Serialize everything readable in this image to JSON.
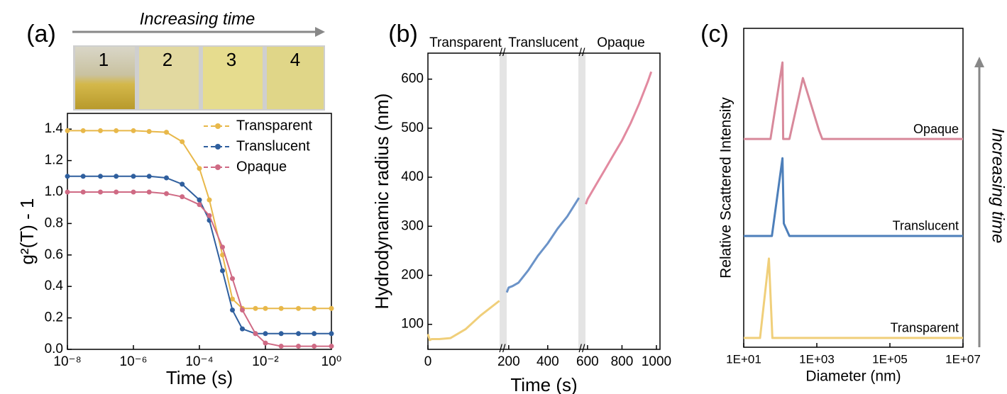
{
  "chart_data": [
    {
      "type": "line",
      "panel_label": "(a)",
      "annotation": "Increasing time",
      "vial_labels": [
        "1",
        "2",
        "3",
        "4"
      ],
      "x_label": "Time (s)",
      "y_label": "g²(T) - 1",
      "x_scale": "log",
      "legend": "upper right",
      "x": [
        1e-08,
        3e-08,
        1e-07,
        3e-07,
        1e-06,
        3e-06,
        1e-05,
        3e-05,
        0.0001,
        0.0002,
        0.0005,
        0.001,
        0.002,
        0.005,
        0.01,
        0.03,
        0.1,
        0.3,
        1
      ],
      "xlim": [
        1e-08,
        1
      ],
      "xticks": [
        {
          "value": 1e-08,
          "label": "10⁻⁸"
        },
        {
          "value": 1e-06,
          "label": "10⁻⁶"
        },
        {
          "value": 0.0001,
          "label": "10⁻⁴"
        },
        {
          "value": 0.01,
          "label": "10⁻²"
        },
        {
          "value": 1,
          "label": "10⁰"
        }
      ],
      "ylim": [
        0,
        1.5
      ],
      "yticks": [
        {
          "value": 0,
          "label": "0.0"
        },
        {
          "value": 0.2,
          "label": "0.2"
        },
        {
          "value": 0.4,
          "label": "0.4"
        },
        {
          "value": 0.6,
          "label": "0.6"
        },
        {
          "value": 0.8,
          "label": "0.8"
        },
        {
          "value": 1,
          "label": "1.0"
        },
        {
          "value": 1.2,
          "label": "1.2"
        },
        {
          "value": 1.4,
          "label": "1.4"
        }
      ],
      "series": [
        {
          "name": "Transparent",
          "color": "#e8b84a",
          "values": [
            1.39,
            1.39,
            1.39,
            1.39,
            1.39,
            1.385,
            1.38,
            1.32,
            1.15,
            0.95,
            0.6,
            0.32,
            0.26,
            0.26,
            0.26,
            0.26,
            0.26,
            0.26,
            0.26
          ]
        },
        {
          "name": "Translucent",
          "color": "#2f5f9e",
          "values": [
            1.1,
            1.1,
            1.1,
            1.1,
            1.1,
            1.1,
            1.09,
            1.05,
            0.95,
            0.82,
            0.5,
            0.25,
            0.13,
            0.1,
            0.1,
            0.1,
            0.1,
            0.1,
            0.1
          ]
        },
        {
          "name": "Opaque",
          "color": "#cf6a84",
          "values": [
            1.0,
            1.0,
            1.0,
            1.0,
            1.0,
            1.0,
            0.99,
            0.97,
            0.92,
            0.85,
            0.65,
            0.45,
            0.25,
            0.1,
            0.04,
            0.02,
            0.02,
            0.02,
            0.02
          ]
        }
      ]
    },
    {
      "type": "broken_line",
      "panel_label": "(b)",
      "x_label": "Time (s)",
      "y_label": "Hydrodynamic radius (nm)",
      "x_segments": [
        {
          "xlim": [
            0,
            200
          ],
          "xticks": [
            0
          ]
        },
        {
          "xlim": [
            186,
            568
          ],
          "xticks": [
            200,
            400
          ]
        },
        {
          "xlim": [
            588,
            1000
          ],
          "xticks": [
            600,
            800,
            1000
          ]
        }
      ],
      "ylim": [
        49,
        653
      ],
      "yticks": [
        100,
        200,
        300,
        400,
        500,
        600
      ],
      "series": [
        {
          "name": "Transparent",
          "color": "#f0cf7a",
          "x": [
            0,
            5,
            10,
            30,
            60,
            100,
            140,
            190
          ],
          "values": [
            80,
            68,
            70,
            70,
            72,
            90,
            118,
            148
          ]
        },
        {
          "name": "Translucent",
          "color": "#6b93c8",
          "x": [
            190,
            200,
            220,
            250,
            300,
            350,
            400,
            450,
            500,
            560
          ],
          "values": [
            165,
            175,
            178,
            185,
            210,
            240,
            265,
            295,
            320,
            358
          ]
        },
        {
          "name": "Opaque",
          "color": "#e28aa0",
          "x": [
            590,
            600,
            650,
            700,
            750,
            800,
            850,
            900,
            950,
            970
          ],
          "values": [
            345,
            355,
            385,
            415,
            445,
            475,
            510,
            550,
            595,
            615
          ]
        }
      ]
    },
    {
      "type": "line",
      "panel_label": "(c)",
      "annotation": "Increasing time",
      "x_label": "Diameter (nm)",
      "y_label": "Relative Scattered Intensity",
      "x_scale": "log",
      "xlim": [
        10,
        10000000
      ],
      "xticks": [
        {
          "value": 10,
          "label": "1E+01"
        },
        {
          "value": 1000,
          "label": "1E+03"
        },
        {
          "value": 100000,
          "label": "1E+05"
        },
        {
          "value": 10000000,
          "label": "1E+07"
        }
      ],
      "ylim": [
        0,
        100
      ],
      "series": [
        {
          "name": "Opaque",
          "color": "#d8899b",
          "x": [
            10,
            54,
            115,
            120,
            178,
            417,
            1150,
            1410,
            10000000
          ],
          "values": [
            65.3,
            65.3,
            89.3,
            65.3,
            65.3,
            84.4,
            68,
            65.3,
            65.3
          ]
        },
        {
          "name": "Translucent",
          "color": "#4d7fba",
          "x": [
            10,
            59,
            115,
            125,
            178,
            10000000
          ],
          "values": [
            34.9,
            34.9,
            59.3,
            38.8,
            34.9,
            34.9
          ]
        },
        {
          "name": "Transparent",
          "color": "#f0cf7a",
          "x": [
            10,
            28,
            49,
            61,
            10000000
          ],
          "values": [
            2.9,
            2.9,
            27.8,
            2.9,
            2.9
          ]
        }
      ]
    }
  ]
}
